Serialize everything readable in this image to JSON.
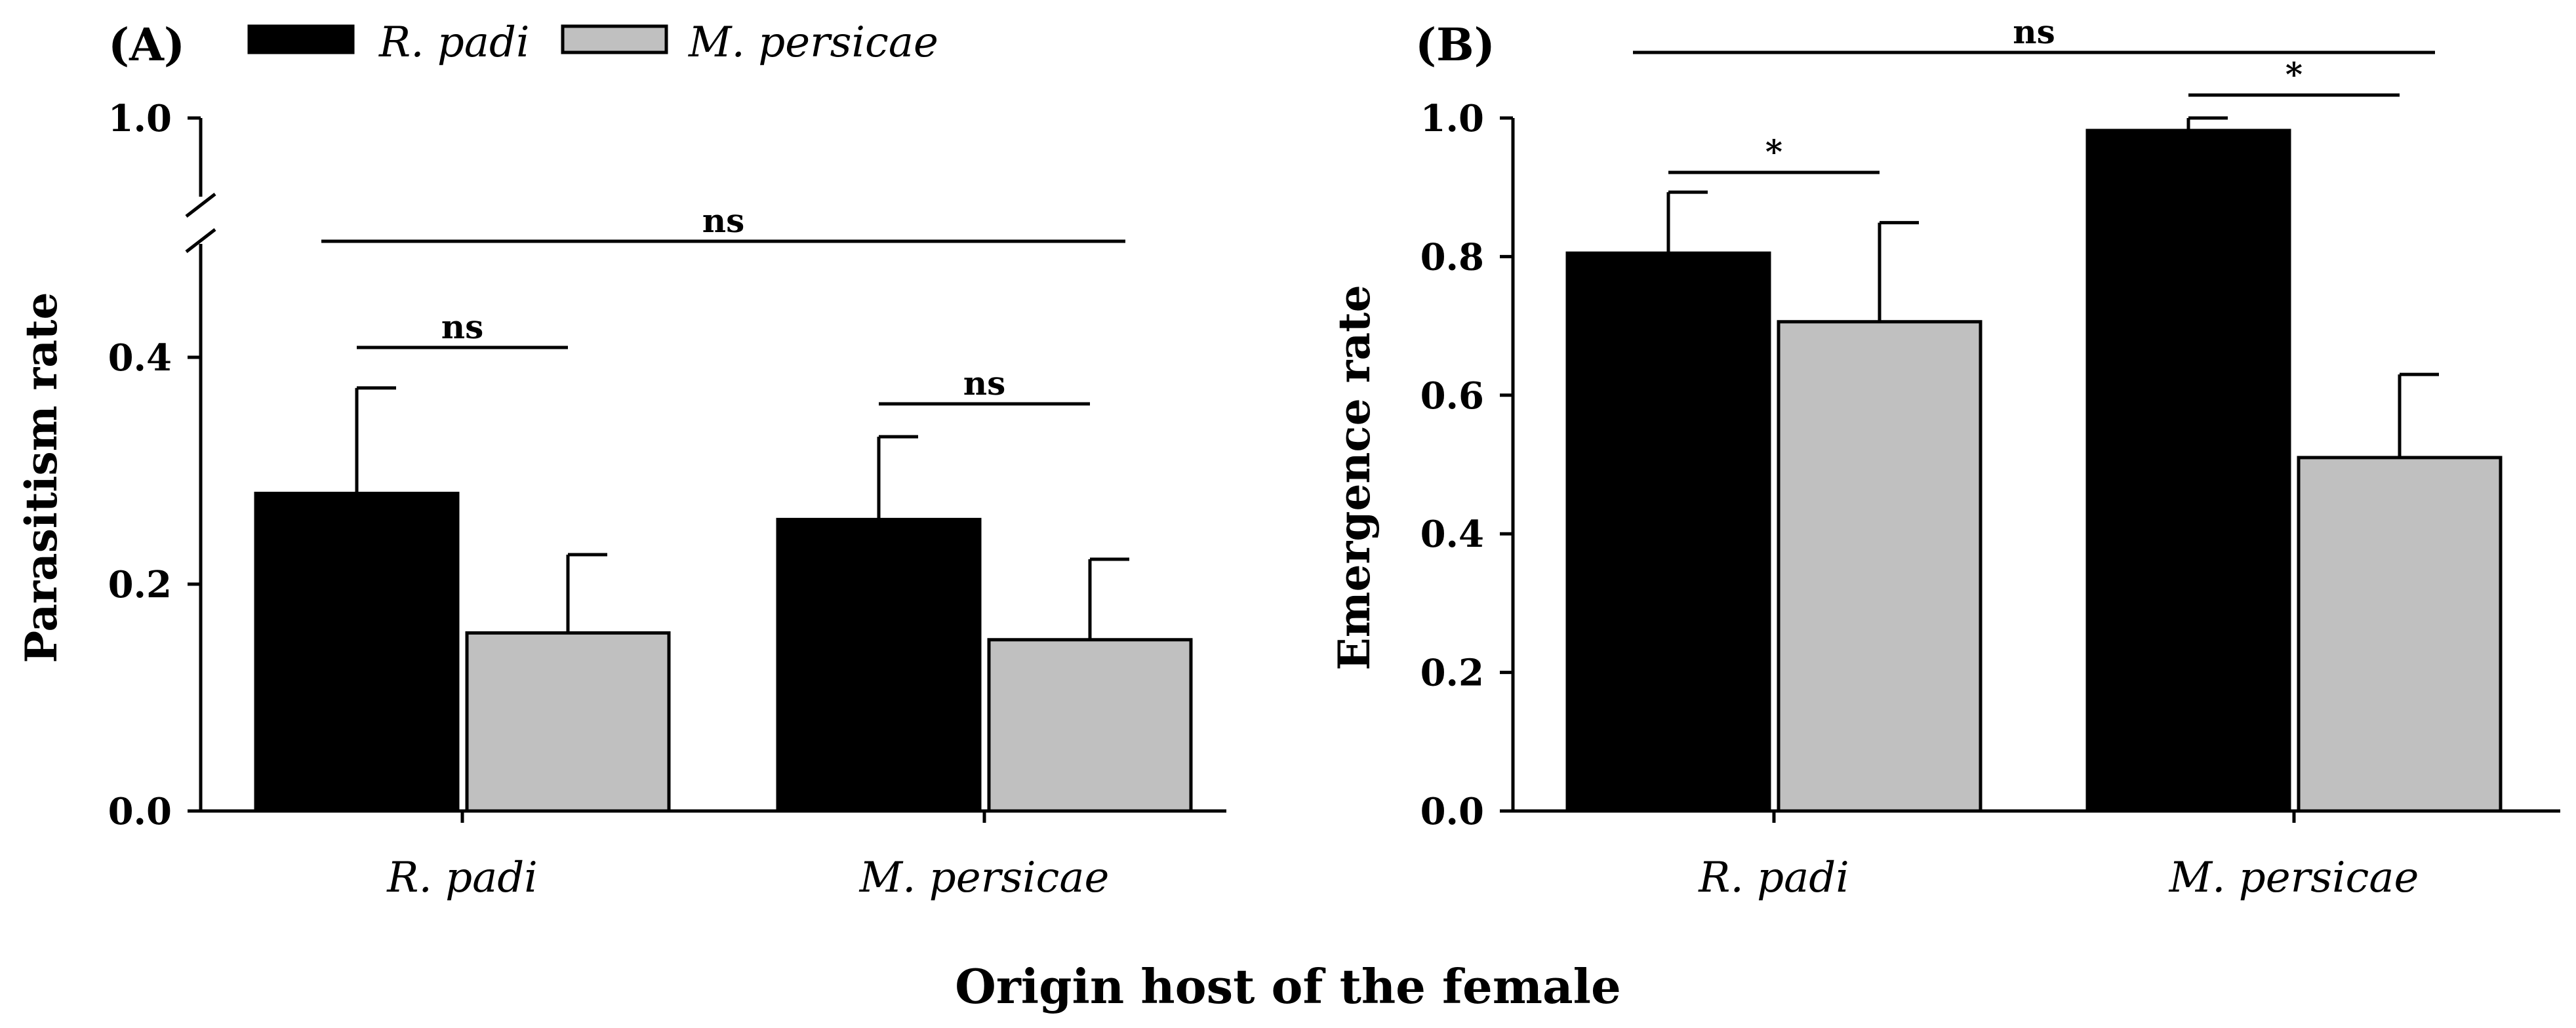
{
  "xlabel": "Origin host of the female",
  "legend": [
    {
      "label": "R. padi",
      "color": "#000000"
    },
    {
      "label": "M. persicae",
      "color": "#c0c0c0"
    }
  ],
  "chart_data": [
    {
      "type": "bar",
      "panel": "(A)",
      "title": "",
      "ylabel": "Parasitism rate",
      "xlabel": "Origin host of the female",
      "categories": [
        "R. padi",
        "M. persicae"
      ],
      "series": [
        {
          "name": "R. padi",
          "values": [
            0.28,
            0.257
          ],
          "errors": [
            0.093,
            0.073
          ],
          "color": "#000000"
        },
        {
          "name": "M. persicae",
          "values": [
            0.157,
            0.151
          ],
          "errors": [
            0.069,
            0.071
          ],
          "color": "#c0c0c0"
        }
      ],
      "ylim": [
        0,
        1.0
      ],
      "axis_break": [
        0.5,
        0.95
      ],
      "yticks": [
        0.0,
        0.2,
        0.4,
        1.0
      ],
      "ytick_labels": [
        "0.0",
        "0.2",
        "0.4",
        "1.0"
      ],
      "significance": [
        {
          "label": "ns",
          "scope": "R. padi"
        },
        {
          "label": "ns",
          "scope": "M. persicae"
        },
        {
          "label": "ns",
          "scope": "between"
        }
      ]
    },
    {
      "type": "bar",
      "panel": "(B)",
      "title": "",
      "ylabel": "Emergence rate",
      "xlabel": "Origin host of the female",
      "categories": [
        "R. padi",
        "M. persicae"
      ],
      "series": [
        {
          "name": "R. padi",
          "values": [
            0.805,
            0.982
          ],
          "errors": [
            0.088,
            0.018
          ],
          "color": "#000000"
        },
        {
          "name": "M. persicae",
          "values": [
            0.706,
            0.51
          ],
          "errors": [
            0.143,
            0.12
          ],
          "color": "#c0c0c0"
        }
      ],
      "ylim": [
        0,
        1.0
      ],
      "yticks": [
        0.0,
        0.2,
        0.4,
        0.6,
        0.8,
        1.0
      ],
      "ytick_labels": [
        "0.0",
        "0.2",
        "0.4",
        "0.6",
        "0.8",
        "1.0"
      ],
      "significance": [
        {
          "label": "*",
          "scope": "R. padi"
        },
        {
          "label": "*",
          "scope": "M. persicae"
        },
        {
          "label": "ns",
          "scope": "between"
        }
      ]
    }
  ]
}
